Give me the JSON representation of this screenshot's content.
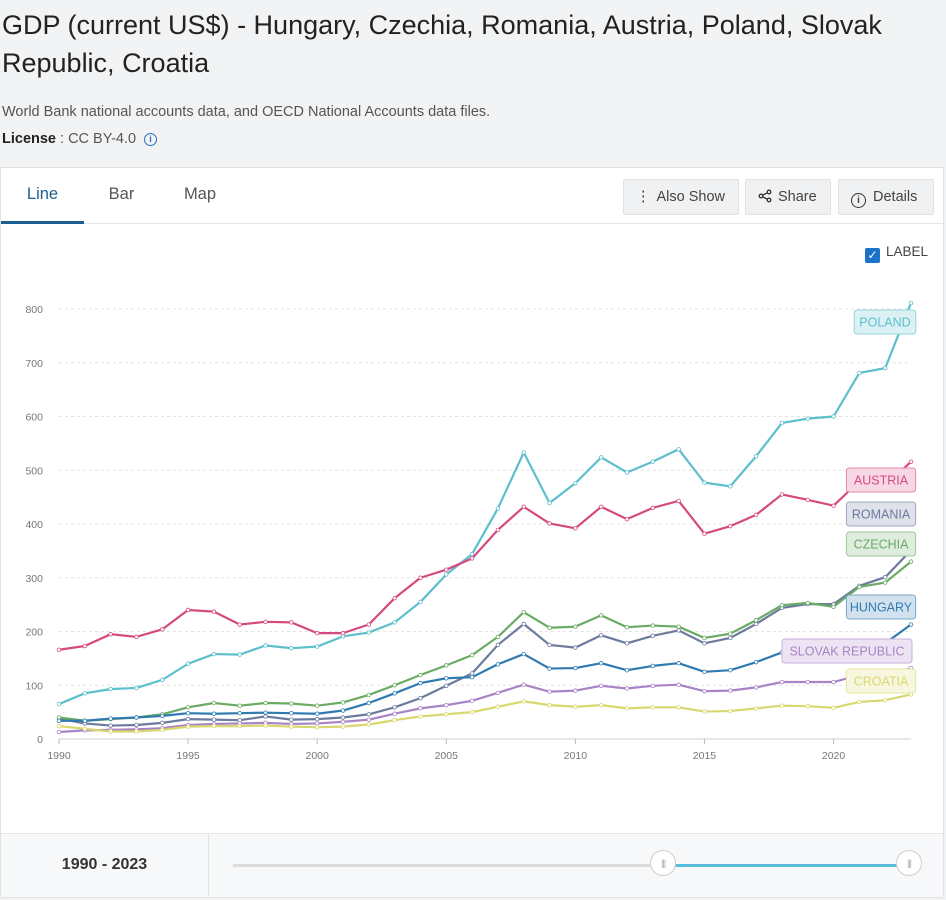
{
  "header": {
    "title": "GDP (current US$) - Hungary, Czechia, Romania, Austria, Poland, Slovak Republic, Croatia",
    "source": "World Bank national accounts data, and OECD National Accounts data files.",
    "license_label": "License",
    "license_value": " : CC BY-4.0"
  },
  "tabs": [
    {
      "label": "Line",
      "active": true
    },
    {
      "label": "Bar",
      "active": false
    },
    {
      "label": "Map",
      "active": false
    }
  ],
  "toolbar": {
    "also_show": "Also Show",
    "share": "Share",
    "details": "Details"
  },
  "label_toggle": {
    "text": "LABEL",
    "checked": true
  },
  "range": {
    "label": "1990 - 2023",
    "start": 1990,
    "end": 2023,
    "selection_start": 2011,
    "selection_end": 2023
  },
  "chart_data": {
    "type": "line",
    "x_ticks": [
      "1990",
      "1995",
      "2000",
      "2005",
      "2010",
      "2015",
      "2020"
    ],
    "y_ticks": [
      "0",
      "100",
      "200",
      "300",
      "400",
      "500",
      "600",
      "700",
      "800"
    ],
    "xlim": [
      1990,
      2023
    ],
    "ylim": [
      0,
      800
    ],
    "grid": "horizontal dashed",
    "end_labels": true,
    "x": [
      1990,
      1991,
      1992,
      1993,
      1994,
      1995,
      1996,
      1997,
      1998,
      1999,
      2000,
      2001,
      2002,
      2003,
      2004,
      2005,
      2006,
      2007,
      2008,
      2009,
      2010,
      2011,
      2012,
      2013,
      2014,
      2015,
      2016,
      2017,
      2018,
      2019,
      2020,
      2021,
      2022,
      2023
    ],
    "series": [
      {
        "name": "POLAND",
        "color": "#5bbfcc",
        "values": [
          65,
          85,
          93,
          95,
          110,
          140,
          158,
          157,
          174,
          169,
          172,
          191,
          198,
          217,
          255,
          306,
          344,
          429,
          533,
          439,
          476,
          524,
          496,
          516,
          539,
          477,
          470,
          526,
          588,
          596,
          600,
          681,
          690,
          811
        ]
      },
      {
        "name": "AUSTRIA",
        "color": "#d6497f",
        "values": [
          166,
          173,
          195,
          190,
          204,
          240,
          237,
          213,
          218,
          217,
          197,
          197,
          213,
          262,
          300,
          315,
          336,
          389,
          432,
          401,
          392,
          432,
          409,
          430,
          443,
          382,
          396,
          417,
          455,
          445,
          434,
          480,
          471,
          516
        ]
      },
      {
        "name": "ROMANIA",
        "color": "#6c7a9e",
        "values": [
          38,
          29,
          25,
          26,
          30,
          37,
          36,
          35,
          42,
          36,
          37,
          40,
          46,
          59,
          76,
          99,
          122,
          175,
          214,
          175,
          170,
          193,
          178,
          192,
          202,
          178,
          188,
          214,
          244,
          251,
          251,
          285,
          301,
          351
        ]
      },
      {
        "name": "CZECHIA",
        "color": "#6aab63",
        "values": [
          40,
          34,
          37,
          40,
          46,
          59,
          67,
          62,
          67,
          66,
          62,
          68,
          82,
          100,
          119,
          137,
          156,
          190,
          236,
          207,
          209,
          230,
          208,
          211,
          209,
          188,
          196,
          221,
          249,
          253,
          246,
          283,
          291,
          330
        ]
      },
      {
        "name": "HUNGARY",
        "color": "#2f7bb1",
        "values": [
          34,
          34,
          38,
          40,
          43,
          48,
          47,
          48,
          49,
          48,
          47,
          53,
          67,
          85,
          104,
          113,
          115,
          139,
          158,
          131,
          132,
          141,
          128,
          136,
          141,
          125,
          128,
          143,
          161,
          164,
          158,
          183,
          178,
          213
        ]
      },
      {
        "name": "SLOVAK REPUBLIC",
        "color": "#a884c6",
        "values": [
          13,
          16,
          17,
          18,
          20,
          26,
          28,
          29,
          30,
          28,
          29,
          32,
          36,
          47,
          57,
          63,
          71,
          86,
          101,
          88,
          90,
          99,
          94,
          99,
          101,
          89,
          90,
          96,
          106,
          106,
          106,
          119,
          116,
          132
        ]
      },
      {
        "name": "CROATIA",
        "color": "#d9d86e",
        "values": [
          24,
          19,
          14,
          14,
          17,
          23,
          24,
          24,
          25,
          23,
          22,
          23,
          27,
          35,
          42,
          46,
          50,
          60,
          70,
          63,
          60,
          63,
          57,
          59,
          59,
          51,
          52,
          57,
          62,
          61,
          58,
          69,
          72,
          83
        ]
      }
    ]
  }
}
